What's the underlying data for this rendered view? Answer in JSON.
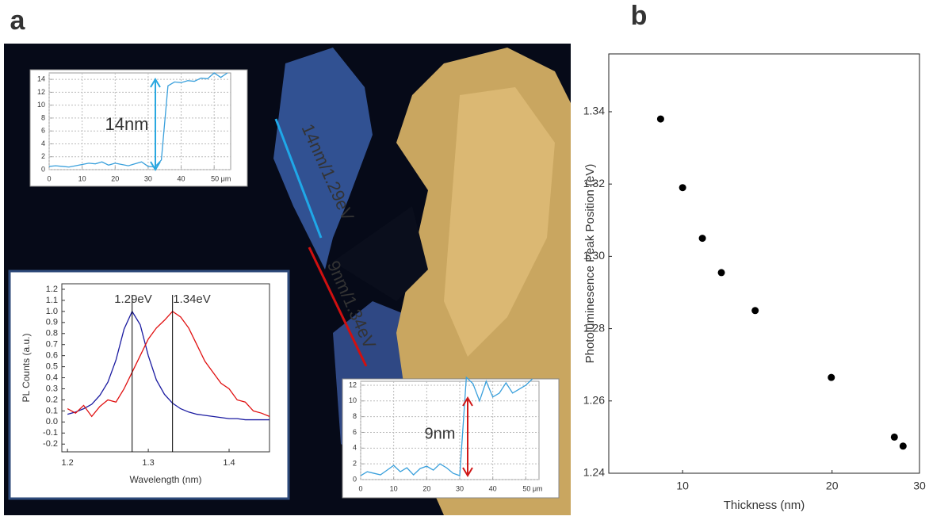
{
  "figure": {
    "panel_labels": [
      "a",
      "b"
    ],
    "image_annotations": [
      "14nm/1.29eV",
      "9nm/1.34eV"
    ]
  },
  "chart_data": [
    {
      "type": "line",
      "x": [
        0,
        2,
        4,
        6,
        8,
        10,
        12,
        14,
        16,
        18,
        20,
        22,
        24,
        26,
        28,
        30,
        32,
        34,
        36,
        38,
        40,
        42,
        44,
        46,
        48,
        50,
        52,
        54
      ],
      "series": [
        {
          "color": "#3aa0dc",
          "values": [
            0.5,
            0.6,
            0.5,
            0.4,
            0.6,
            0.8,
            1.0,
            0.9,
            1.2,
            0.7,
            1.0,
            0.8,
            0.6,
            0.9,
            1.2,
            0.5,
            0.4,
            1.5,
            13.0,
            13.6,
            13.5,
            13.8,
            13.7,
            14.2,
            14.1,
            15.0,
            14.3,
            15.0
          ]
        }
      ],
      "xlim": [
        0,
        55
      ],
      "xticks": [
        0,
        10,
        20,
        30,
        40,
        {
          "value": 50,
          "label": "50 μm"
        }
      ],
      "ylim": [
        0,
        15
      ],
      "yticks": [
        0,
        2,
        4,
        6,
        8,
        10,
        12,
        14
      ],
      "grid": true,
      "annotations": [
        "14nm"
      ],
      "arrow_color": "#29a8e0"
    },
    {
      "type": "line",
      "x": [
        1.2,
        1.21,
        1.22,
        1.23,
        1.24,
        1.25,
        1.26,
        1.27,
        1.28,
        1.29,
        1.3,
        1.31,
        1.32,
        1.33,
        1.34,
        1.35,
        1.36,
        1.37,
        1.38,
        1.39,
        1.4,
        1.41,
        1.42,
        1.43,
        1.44,
        1.45
      ],
      "series": [
        {
          "color": "#1a1aa0",
          "values": [
            0.07,
            0.09,
            0.12,
            0.16,
            0.24,
            0.36,
            0.56,
            0.84,
            1.0,
            0.88,
            0.6,
            0.38,
            0.25,
            0.17,
            0.12,
            0.09,
            0.07,
            0.06,
            0.05,
            0.04,
            0.03,
            0.03,
            0.02,
            0.02,
            0.02,
            0.02
          ]
        },
        {
          "color": "#e01010",
          "values": [
            0.12,
            0.08,
            0.15,
            0.05,
            0.14,
            0.2,
            0.18,
            0.3,
            0.45,
            0.6,
            0.75,
            0.85,
            0.92,
            1.0,
            0.95,
            0.85,
            0.7,
            0.55,
            0.45,
            0.35,
            0.3,
            0.2,
            0.18,
            0.1,
            0.08,
            0.05
          ]
        }
      ],
      "xlabel": "Wavelength (nm)",
      "ylabel": "PL Counts (a.u.)",
      "xlim": [
        1.193,
        1.45
      ],
      "xticks": [
        1.2,
        1.3,
        1.4
      ],
      "ylim": [
        -0.27,
        1.25
      ],
      "yticks": [
        -0.2,
        -0.1,
        {
          "value": 0,
          "label": "0.0"
        },
        0.1,
        0.2,
        0.3,
        0.4,
        0.5,
        0.6,
        0.7,
        0.8,
        0.9,
        {
          "value": 1,
          "label": "1.0"
        },
        1.1,
        1.2
      ],
      "grid": false,
      "annotations": [
        "1.29eV",
        "1.34eV"
      ],
      "vlines": [
        1.28,
        1.33
      ]
    },
    {
      "type": "line",
      "x": [
        0,
        2,
        4,
        6,
        8,
        10,
        12,
        14,
        16,
        18,
        20,
        22,
        24,
        26,
        28,
        30,
        32,
        34,
        36,
        38,
        40,
        42,
        44,
        46,
        48,
        50,
        52
      ],
      "series": [
        {
          "color": "#3aa0dc",
          "values": [
            0.5,
            1.0,
            0.8,
            0.6,
            1.2,
            1.8,
            1.0,
            1.5,
            0.6,
            1.4,
            1.7,
            1.2,
            2.0,
            1.5,
            0.8,
            0.5,
            13.0,
            12.2,
            10.0,
            12.5,
            10.5,
            11.0,
            12.3,
            11.0,
            11.5,
            12.0,
            12.8
          ]
        }
      ],
      "xlim": [
        0,
        54
      ],
      "xticks": [
        0,
        10,
        20,
        30,
        40,
        {
          "value": 50,
          "label": "50 μm"
        }
      ],
      "ylim": [
        0,
        12.5
      ],
      "yticks": [
        0,
        2,
        4,
        6,
        8,
        10,
        12
      ],
      "grid": true,
      "annotations": [
        "9nm"
      ],
      "arrow_color": "#d01818"
    },
    {
      "type": "scatter",
      "x": [
        9.03,
        10.0,
        10.96,
        11.97,
        14.0,
        19.93,
        26.7,
        27.8
      ],
      "values": [
        1.338,
        1.319,
        1.305,
        1.2955,
        1.285,
        1.2665,
        1.25,
        1.2475
      ],
      "color": "#000000",
      "xlabel": "Thickness (nm)",
      "ylabel": "Photoluminesence Peak Position (eV)",
      "xlim": [
        7.1,
        30
      ],
      "xticks": [
        10,
        20,
        30
      ],
      "xlog": true,
      "ylim": [
        1.24,
        1.356
      ],
      "yticks": [
        1.24,
        1.26,
        1.28,
        {
          "value": 1.3,
          "label": "1.30"
        },
        1.32,
        1.34
      ],
      "grid": false
    }
  ]
}
